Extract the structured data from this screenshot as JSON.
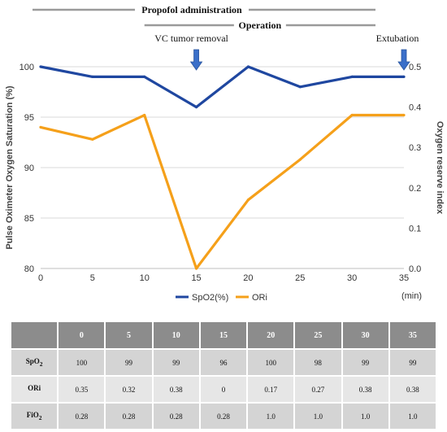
{
  "chart_data": {
    "type": "line",
    "x": [
      0,
      5,
      10,
      15,
      20,
      25,
      30,
      35
    ],
    "x_unit_label": "(min)",
    "xlim": [
      0,
      35
    ],
    "series": [
      {
        "name": "SpO2(%)",
        "axis": "left",
        "color": "#1f47a0",
        "values": [
          100,
          99,
          99,
          96,
          100,
          98,
          99,
          99
        ]
      },
      {
        "name": "ORi",
        "axis": "right",
        "color": "#f5a01a",
        "values": [
          0.35,
          0.32,
          0.38,
          0.0,
          0.17,
          0.27,
          0.38,
          0.38
        ]
      }
    ],
    "y_left": {
      "label": "Pulse Oximeter Oxygen Saturation (%)",
      "lim": [
        80,
        100
      ],
      "ticks": [
        "80",
        "85",
        "90",
        "95",
        "100"
      ]
    },
    "y_right": {
      "label": "Oxygen reserve index",
      "lim": [
        0.0,
        0.5
      ],
      "ticks": [
        "0.0",
        "0.1",
        "0.2",
        "0.3",
        "0.4",
        "0.5"
      ]
    },
    "x_ticks": [
      "0",
      "5",
      "10",
      "15",
      "20",
      "25",
      "30",
      "35"
    ],
    "grid": "horizontal",
    "legend_placement": "bottom",
    "annotations": [
      {
        "text": "VC tumor removal",
        "x": 15
      },
      {
        "text": "Extubation",
        "x": 35
      }
    ],
    "periods": [
      {
        "text": "Propofol administration",
        "start": 0,
        "end": 35
      },
      {
        "text": "Operation",
        "start": 10,
        "end": 35
      }
    ],
    "arrow_color": "#3a6fc9"
  },
  "table": {
    "headers": [
      "",
      "0",
      "5",
      "10",
      "15",
      "20",
      "25",
      "30",
      "35"
    ],
    "rows": [
      {
        "label": "SpO",
        "sub": "2",
        "values": [
          "100",
          "99",
          "99",
          "96",
          "100",
          "98",
          "99",
          "99"
        ]
      },
      {
        "label": "ORi",
        "sub": "",
        "values": [
          "0.35",
          "0.32",
          "0.38",
          "0",
          "0.17",
          "0.27",
          "0.38",
          "0.38"
        ]
      },
      {
        "label": "FiO",
        "sub": "2",
        "values": [
          "0.28",
          "0.28",
          "0.28",
          "0.28",
          "1.0",
          "1.0",
          "1.0",
          "1.0"
        ]
      }
    ]
  }
}
